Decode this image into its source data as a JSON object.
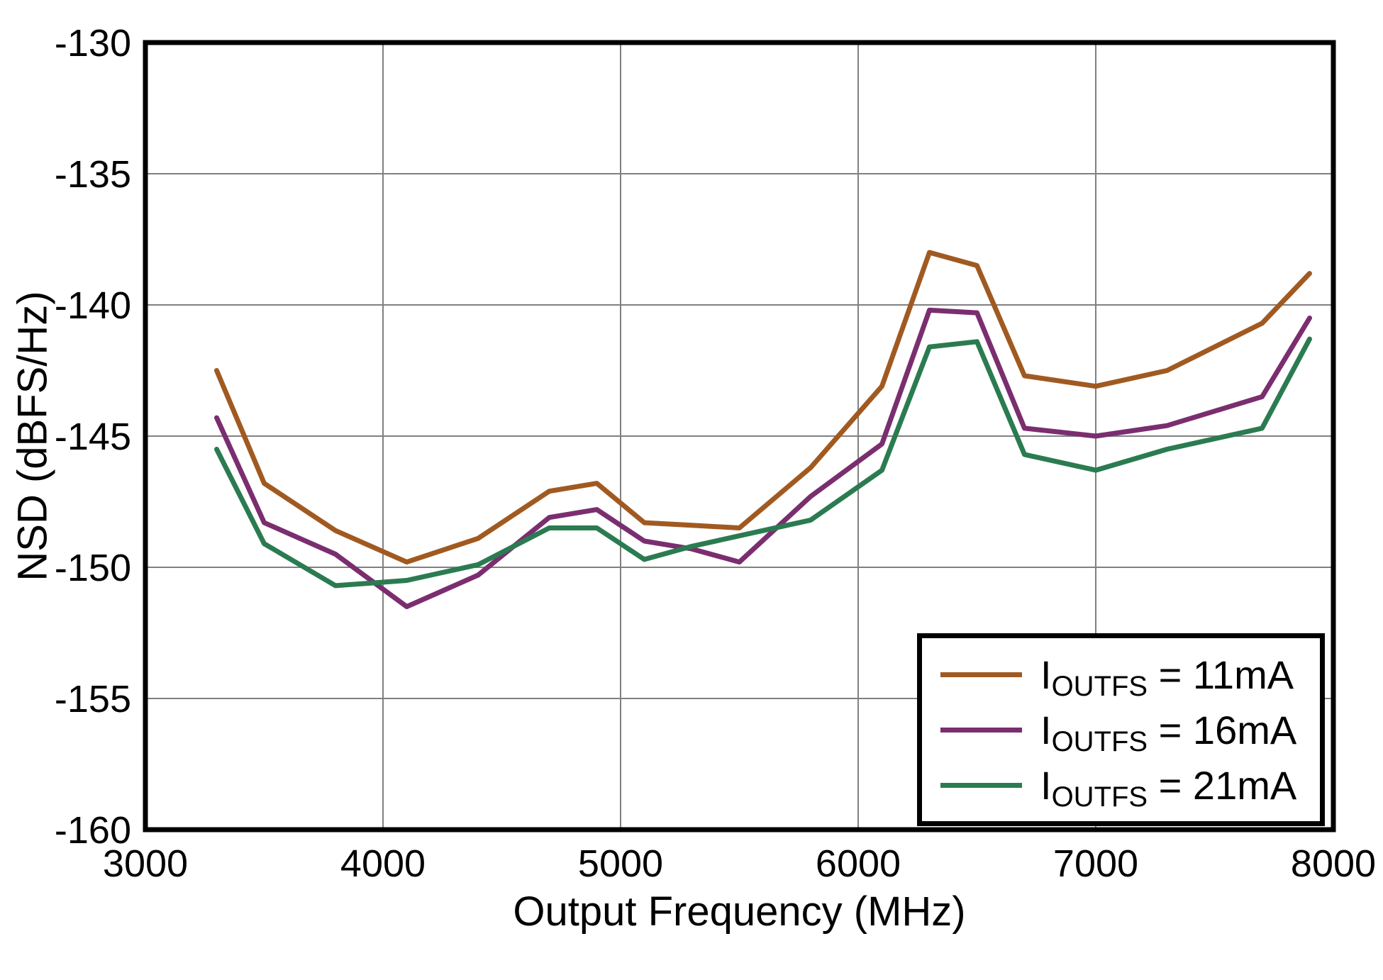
{
  "chart_data": {
    "type": "line",
    "title": "",
    "xlabel": "Output Frequency (MHz)",
    "ylabel": "NSD (dBFS/Hz)",
    "xlim": [
      3000,
      8000
    ],
    "ylim": [
      -160,
      -130
    ],
    "x_ticks": [
      3000,
      4000,
      5000,
      6000,
      7000,
      8000
    ],
    "y_ticks": [
      -130,
      -135,
      -140,
      -145,
      -150,
      -155,
      -160
    ],
    "grid": true,
    "grid_color": "#808080",
    "border_color": "#000000",
    "legend_position": "bottom-right",
    "x": [
      3300,
      3500,
      3800,
      4100,
      4400,
      4700,
      4900,
      5100,
      5300,
      5500,
      5800,
      6100,
      6300,
      6500,
      6700,
      7000,
      7300,
      7700,
      7900
    ],
    "series": [
      {
        "name": "IOUTFS = 11mA",
        "color": "#A05A21",
        "values": [
          -142.5,
          -146.8,
          -148.6,
          -149.8,
          -148.9,
          -147.1,
          -146.8,
          -148.3,
          -148.4,
          -148.5,
          -146.2,
          -143.1,
          -138.0,
          -138.5,
          -142.7,
          -143.1,
          -142.5,
          -140.7,
          -138.8
        ]
      },
      {
        "name": "IOUTFS = 16mA",
        "color": "#7A2E6F",
        "values": [
          -144.3,
          -148.3,
          -149.5,
          -151.5,
          -150.3,
          -148.1,
          -147.8,
          -149.0,
          -149.3,
          -149.8,
          -147.3,
          -145.3,
          -140.2,
          -140.3,
          -144.7,
          -145.0,
          -144.6,
          -143.5,
          -140.5
        ]
      },
      {
        "name": "IOUTFS = 21mA",
        "color": "#2B7B51",
        "values": [
          -145.5,
          -149.1,
          -150.7,
          -150.5,
          -149.9,
          -148.5,
          -148.5,
          -149.7,
          -149.2,
          -148.8,
          -148.2,
          -146.3,
          -141.6,
          -141.4,
          -145.7,
          -146.3,
          -145.5,
          -144.7,
          -141.3
        ]
      }
    ],
    "legend": [
      {
        "main": "I",
        "sub": "OUTFS",
        "rest": " = 11mA",
        "color": "#A05A21"
      },
      {
        "main": "I",
        "sub": "OUTFS",
        "rest": " = 16mA",
        "color": "#7A2E6F"
      },
      {
        "main": "I",
        "sub": "OUTFS",
        "rest": " = 21mA",
        "color": "#2B7B51"
      }
    ]
  }
}
